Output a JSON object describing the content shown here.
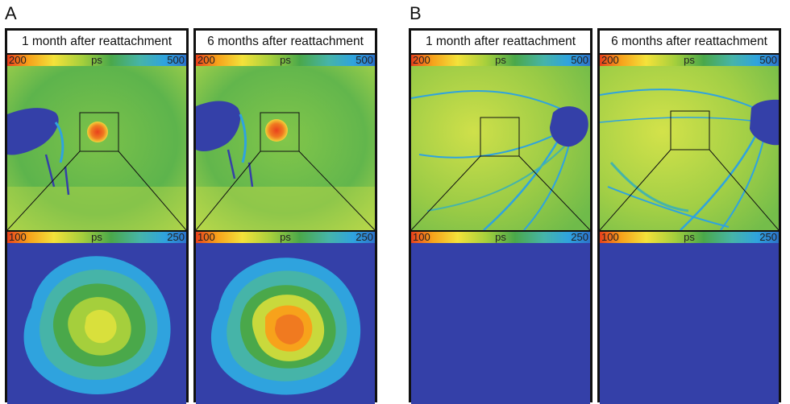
{
  "sections": [
    {
      "label": "A",
      "panels": [
        {
          "title": "1 month after reattachment",
          "top_bar": {
            "min": "200",
            "unit": "ps",
            "max": "500"
          },
          "bottom_bar": {
            "min": "100",
            "unit": "ps",
            "max": "250"
          }
        },
        {
          "title": "6 months after reattachment",
          "top_bar": {
            "min": "200",
            "unit": "ps",
            "max": "500"
          },
          "bottom_bar": {
            "min": "100",
            "unit": "ps",
            "max": "250"
          }
        }
      ]
    },
    {
      "label": "B",
      "panels": [
        {
          "title": "1 month after reattachment",
          "top_bar": {
            "min": "200",
            "unit": "ps",
            "max": "500"
          },
          "bottom_bar": {
            "min": "100",
            "unit": "ps",
            "max": "250"
          }
        },
        {
          "title": "6 months after reattachment",
          "top_bar": {
            "min": "200",
            "unit": "ps",
            "max": "500"
          },
          "bottom_bar": {
            "min": "100",
            "unit": "ps",
            "max": "250"
          }
        }
      ]
    }
  ],
  "colors": {
    "frame": "#111111",
    "background_blue": "#3440a8",
    "map_green": "#63b44a",
    "map_yellow": "#cfe04a",
    "fovea_red": "#e8411c"
  }
}
